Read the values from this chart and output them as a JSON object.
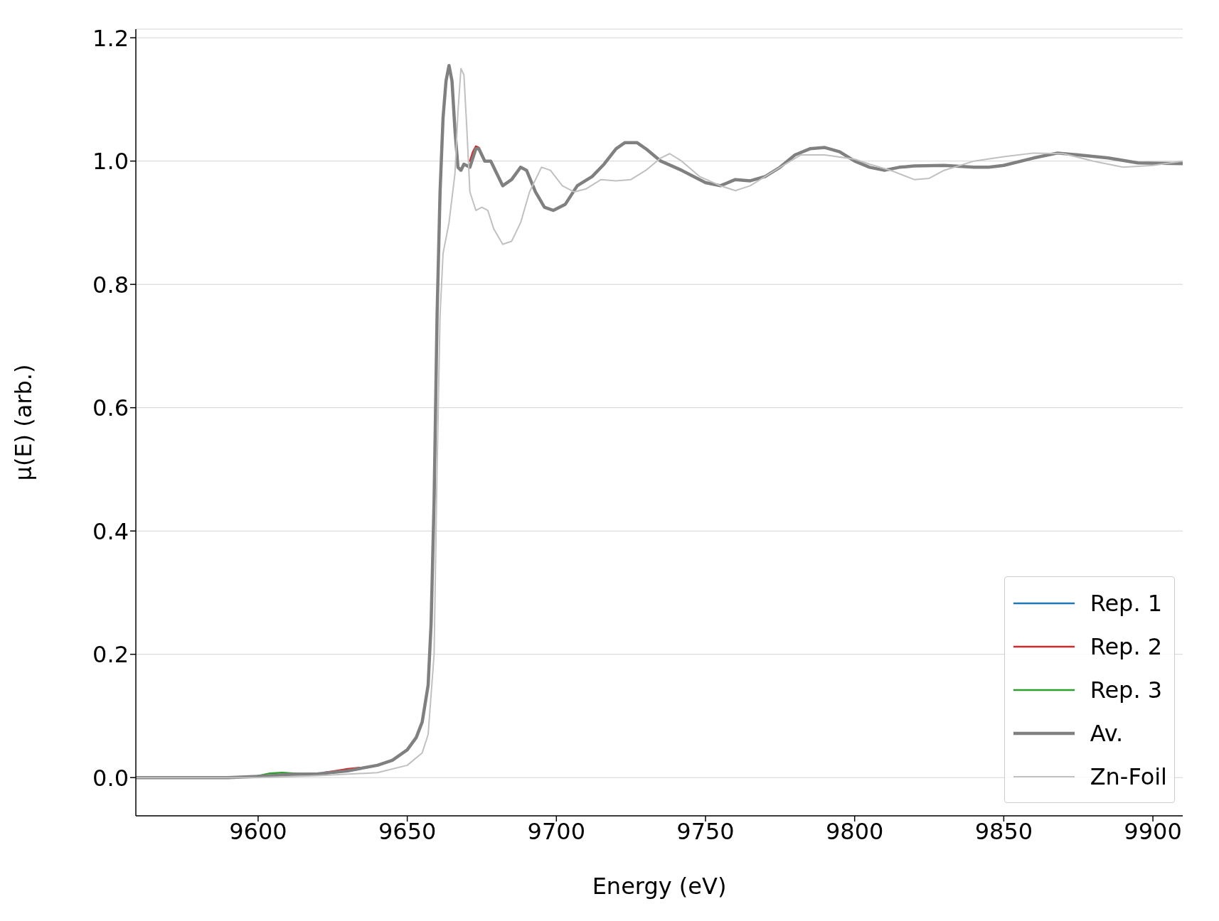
{
  "chart_data": {
    "type": "line",
    "xlabel": "Energy (eV)",
    "ylabel": "μ(E) (arb.)",
    "xlim": [
      9559,
      9910
    ],
    "xticks": [
      9600,
      9650,
      9700,
      9750,
      9800,
      9850,
      9900
    ],
    "ylim": [
      -0.062,
      1.214
    ],
    "yticks": [
      {
        "value": 0,
        "label": "0.0"
      },
      0.2,
      0.4,
      0.6,
      0.8,
      {
        "value": 1,
        "label": "1.0"
      },
      1.2
    ],
    "grid": "y",
    "legend": "bottom right",
    "line_style": "solid",
    "marker": "none",
    "series": [
      {
        "name": "Rep. 1",
        "color": "#1f77b4"
      },
      {
        "name": "Rep. 2",
        "color": "#d62728",
        "x": [
          9622,
          9626,
          9630,
          9634,
          9650,
          9671,
          9672,
          9673,
          9674,
          9675
        ],
        "values": [
          0.008,
          0.011,
          0.014,
          0.016,
          null,
          1.0,
          1.015,
          1.024,
          1.022,
          1.01
        ]
      },
      {
        "name": "Rep. 3",
        "color": "#2ca02c",
        "x": [
          9600,
          9604,
          9608,
          9612,
          9616
        ],
        "values": [
          0.003,
          0.007,
          0.008,
          0.007,
          0.006
        ]
      },
      {
        "name": "Av.",
        "color": "#808080",
        "x": [
          9559,
          9575,
          9590,
          9600,
          9610,
          9620,
          9630,
          9640,
          9645,
          9650,
          9653,
          9655,
          9657,
          9658,
          9659,
          9660,
          9661,
          9662,
          9663,
          9664,
          9665,
          9666,
          9667,
          9668,
          9669,
          9671,
          9673,
          9674,
          9676,
          9678,
          9680,
          9682,
          9685,
          9688,
          9690,
          9693,
          9696,
          9699,
          9703,
          9707,
          9712,
          9716,
          9720,
          9723,
          9727,
          9730,
          9735,
          9742,
          9750,
          9755,
          9760,
          9765,
          9770,
          9775,
          9780,
          9785,
          9790,
          9795,
          9800,
          9805,
          9810,
          9815,
          9820,
          9830,
          9840,
          9845,
          9850,
          9860,
          9868,
          9875,
          9885,
          9895,
          9910
        ],
        "values": [
          0.0,
          0.0,
          0.0,
          0.002,
          0.005,
          0.006,
          0.011,
          0.02,
          0.028,
          0.045,
          0.065,
          0.09,
          0.15,
          0.25,
          0.45,
          0.75,
          0.95,
          1.07,
          1.13,
          1.155,
          1.13,
          1.05,
          0.99,
          0.985,
          0.995,
          0.99,
          1.02,
          1.02,
          1.0,
          1.0,
          0.98,
          0.96,
          0.97,
          0.99,
          0.985,
          0.95,
          0.925,
          0.92,
          0.93,
          0.96,
          0.975,
          0.995,
          1.02,
          1.03,
          1.03,
          1.02,
          1.0,
          0.985,
          0.965,
          0.96,
          0.97,
          0.968,
          0.975,
          0.99,
          1.01,
          1.02,
          1.022,
          1.015,
          1.0,
          0.99,
          0.985,
          0.99,
          0.992,
          0.993,
          0.99,
          0.99,
          0.993,
          1.005,
          1.013,
          1.01,
          1.005,
          0.997,
          0.996
        ]
      },
      {
        "name": "Zn-Foil",
        "color": "#c0c0c0",
        "x": [
          9559,
          9600,
          9620,
          9640,
          9650,
          9655,
          9657,
          9659,
          9660,
          9661,
          9662,
          9664,
          9666,
          9667,
          9668,
          9669,
          9670,
          9671,
          9673,
          9675,
          9677,
          9679,
          9682,
          9685,
          9688,
          9691,
          9695,
          9698,
          9702,
          9706,
          9710,
          9715,
          9720,
          9725,
          9730,
          9735,
          9738,
          9742,
          9748,
          9755,
          9760,
          9765,
          9775,
          9782,
          9790,
          9800,
          9805,
          9812,
          9820,
          9825,
          9830,
          9840,
          9850,
          9860,
          9870,
          9880,
          9890,
          9900,
          9910
        ],
        "values": [
          0.0,
          0.0,
          0.003,
          0.008,
          0.02,
          0.04,
          0.07,
          0.2,
          0.5,
          0.75,
          0.85,
          0.9,
          0.98,
          1.08,
          1.15,
          1.14,
          1.05,
          0.95,
          0.92,
          0.925,
          0.92,
          0.89,
          0.865,
          0.87,
          0.9,
          0.95,
          0.99,
          0.985,
          0.96,
          0.95,
          0.955,
          0.97,
          0.968,
          0.97,
          0.985,
          1.005,
          1.012,
          1.0,
          0.975,
          0.96,
          0.952,
          0.96,
          0.99,
          1.01,
          1.01,
          1.003,
          0.995,
          0.985,
          0.97,
          0.972,
          0.985,
          1.0,
          1.007,
          1.013,
          1.012,
          1.0,
          0.99,
          0.993,
          1.0
        ]
      }
    ]
  }
}
